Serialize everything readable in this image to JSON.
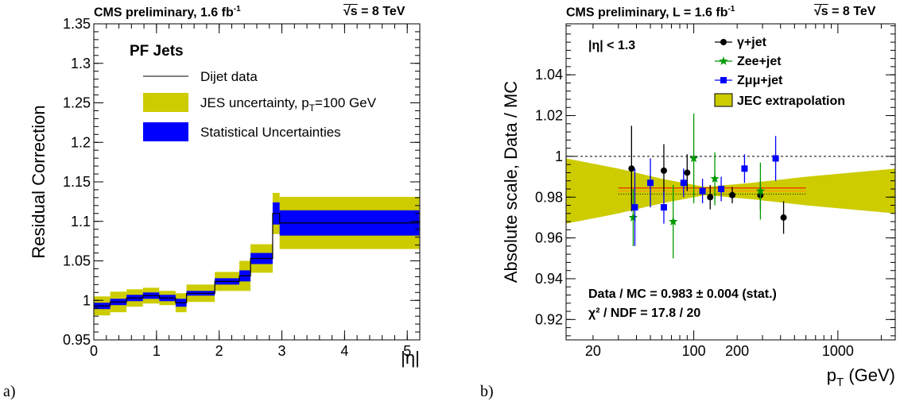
{
  "chart_data": [
    {
      "type": "line",
      "panel_label": "a)",
      "header_left": "CMS preliminary, 1.6 fb",
      "header_left_sup": "-1",
      "header_right": "= 8 TeV",
      "header_right_sqrt": "√s",
      "ylabel": "Residual Correction",
      "xlabel": "|η|",
      "xlim": [
        0,
        5.2
      ],
      "ylim": [
        0.95,
        1.35
      ],
      "xticks": [
        0,
        1,
        2,
        3,
        4,
        5
      ],
      "xtick_labels": [
        "0",
        "1",
        "2",
        "3",
        "4",
        "5"
      ],
      "yticks": [
        0.95,
        1.0,
        1.05,
        1.1,
        1.15,
        1.2,
        1.25,
        1.3,
        1.35
      ],
      "ytick_labels": [
        "0.95",
        "1",
        "1.05",
        "1.1",
        "1.15",
        "1.2",
        "1.25",
        "1.3",
        "1.35"
      ],
      "legend_title": "PF Jets",
      "legend": [
        {
          "label": "Dijet data",
          "kind": "line",
          "color": "#000000"
        },
        {
          "label": "JES uncertainty, p",
          "sub": "T",
          "label_after": "=100 GeV",
          "kind": "box",
          "color": "#cccc00"
        },
        {
          "label": "Statistical Uncertainties",
          "kind": "box",
          "color": "#0000ff"
        }
      ],
      "bins": [
        {
          "lo": 0.0,
          "hi": 0.261,
          "value": 0.993,
          "stat": 0.004,
          "jes": 0.012
        },
        {
          "lo": 0.261,
          "hi": 0.522,
          "value": 0.998,
          "stat": 0.004,
          "jes": 0.013
        },
        {
          "lo": 0.522,
          "hi": 0.783,
          "value": 1.003,
          "stat": 0.004,
          "jes": 0.011
        },
        {
          "lo": 0.783,
          "hi": 1.044,
          "value": 1.006,
          "stat": 0.004,
          "jes": 0.01
        },
        {
          "lo": 1.044,
          "hi": 1.305,
          "value": 1.003,
          "stat": 0.004,
          "jes": 0.009
        },
        {
          "lo": 1.305,
          "hi": 1.479,
          "value": 0.997,
          "stat": 0.005,
          "jes": 0.012
        },
        {
          "lo": 1.479,
          "hi": 1.93,
          "value": 1.009,
          "stat": 0.003,
          "jes": 0.011
        },
        {
          "lo": 1.93,
          "hi": 2.322,
          "value": 1.024,
          "stat": 0.004,
          "jes": 0.012
        },
        {
          "lo": 2.322,
          "hi": 2.5,
          "value": 1.031,
          "stat": 0.007,
          "jes": 0.019
        },
        {
          "lo": 2.5,
          "hi": 2.853,
          "value": 1.053,
          "stat": 0.007,
          "jes": 0.018
        },
        {
          "lo": 2.853,
          "hi": 2.964,
          "value": 1.11,
          "stat": 0.014,
          "jes": 0.026
        },
        {
          "lo": 2.964,
          "hi": 5.191,
          "value": 1.098,
          "stat": 0.016,
          "jes": 0.033
        }
      ],
      "colors": {
        "jes": "#cccc00",
        "stat": "#0000ff",
        "data": "#000000"
      }
    },
    {
      "type": "scatter",
      "panel_label": "b)",
      "header_left": "CMS preliminary, L = 1.6 fb",
      "header_left_sup": "-1",
      "header_right": "= 8 TeV",
      "header_right_sqrt": "√s",
      "ylabel": "Absolute scale, Data / MC",
      "xlabel": "p",
      "xlabel_sub": "T",
      "xlabel_after": " (GeV)",
      "xscale": "log",
      "xlim": [
        13,
        2500
      ],
      "ylim": [
        0.91,
        1.065
      ],
      "xtick_labels_at": [
        20,
        100,
        200,
        1000
      ],
      "xtick_labels": [
        "20",
        "100",
        "200",
        "1000"
      ],
      "yticks": [
        0.92,
        0.94,
        0.96,
        0.98,
        1.0,
        1.02,
        1.04
      ],
      "ytick_labels": [
        "0.92",
        "0.94",
        "0.96",
        "0.98",
        "1",
        "1.02",
        "1.04"
      ],
      "region_label": "|η| < 1.3",
      "fit_text": "Data / MC = 0.983 ± 0.004 (stat.)",
      "chi2_text": "χ² / NDF = 17.8 / 20",
      "reference_line": 1.0,
      "fit_value": 0.983,
      "fit_range": [
        30,
        600
      ],
      "band_center": 0.983,
      "band_half_width_at": [
        {
          "pt": 13,
          "hw": 0.016
        },
        {
          "pt": 30,
          "hw": 0.011
        },
        {
          "pt": 60,
          "hw": 0.006
        },
        {
          "pt": 120,
          "hw": 0.002
        },
        {
          "pt": 250,
          "hw": 0.004
        },
        {
          "pt": 600,
          "hw": 0.007
        },
        {
          "pt": 2500,
          "hw": 0.011
        }
      ],
      "legend": [
        {
          "label": "γ+jet",
          "marker": "circle",
          "color": "#000000"
        },
        {
          "label": "Zee+jet",
          "marker": "star",
          "color": "#009900"
        },
        {
          "label": "Zμμ+jet",
          "marker": "square",
          "color": "#0000ff"
        },
        {
          "label": "JEC extrapolation",
          "marker": "box",
          "color": "#cccc00"
        }
      ],
      "series": [
        {
          "name": "γ+jet",
          "marker": "circle",
          "color": "#000000",
          "points": [
            {
              "x": 37,
              "y": 0.994,
              "err": 0.021
            },
            {
              "x": 62,
              "y": 0.993,
              "err": 0.013
            },
            {
              "x": 90,
              "y": 0.992,
              "err": 0.009
            },
            {
              "x": 130,
              "y": 0.98,
              "err": 0.006
            },
            {
              "x": 185,
              "y": 0.981,
              "err": 0.004
            },
            {
              "x": 290,
              "y": 0.981,
              "err": 0.007
            },
            {
              "x": 420,
              "y": 0.97,
              "err": 0.008
            }
          ]
        },
        {
          "name": "Zee+jet",
          "marker": "star",
          "color": "#009900",
          "points": [
            {
              "x": 38,
              "y": 0.97,
              "err": 0.014
            },
            {
              "x": 72,
              "y": 0.968,
              "err": 0.018
            },
            {
              "x": 100,
              "y": 0.999,
              "err": 0.022
            },
            {
              "x": 140,
              "y": 0.989,
              "err": 0.013
            },
            {
              "x": 290,
              "y": 0.983,
              "err": 0.014
            }
          ]
        },
        {
          "name": "Zμμ+jet",
          "marker": "square",
          "color": "#0000ff",
          "points": [
            {
              "x": 39,
              "y": 0.975,
              "err": 0.019
            },
            {
              "x": 50,
              "y": 0.987,
              "err": 0.012
            },
            {
              "x": 62,
              "y": 0.975,
              "err": 0.008
            },
            {
              "x": 85,
              "y": 0.987,
              "err": 0.007
            },
            {
              "x": 115,
              "y": 0.983,
              "err": 0.006
            },
            {
              "x": 155,
              "y": 0.984,
              "err": 0.006
            },
            {
              "x": 225,
              "y": 0.994,
              "err": 0.007
            },
            {
              "x": 370,
              "y": 0.999,
              "err": 0.011
            }
          ]
        }
      ],
      "colors": {
        "band": "#cccc00",
        "fit_red": "#ff0000",
        "fit_orange": "#ff9900",
        "ref": "#000000"
      }
    }
  ]
}
